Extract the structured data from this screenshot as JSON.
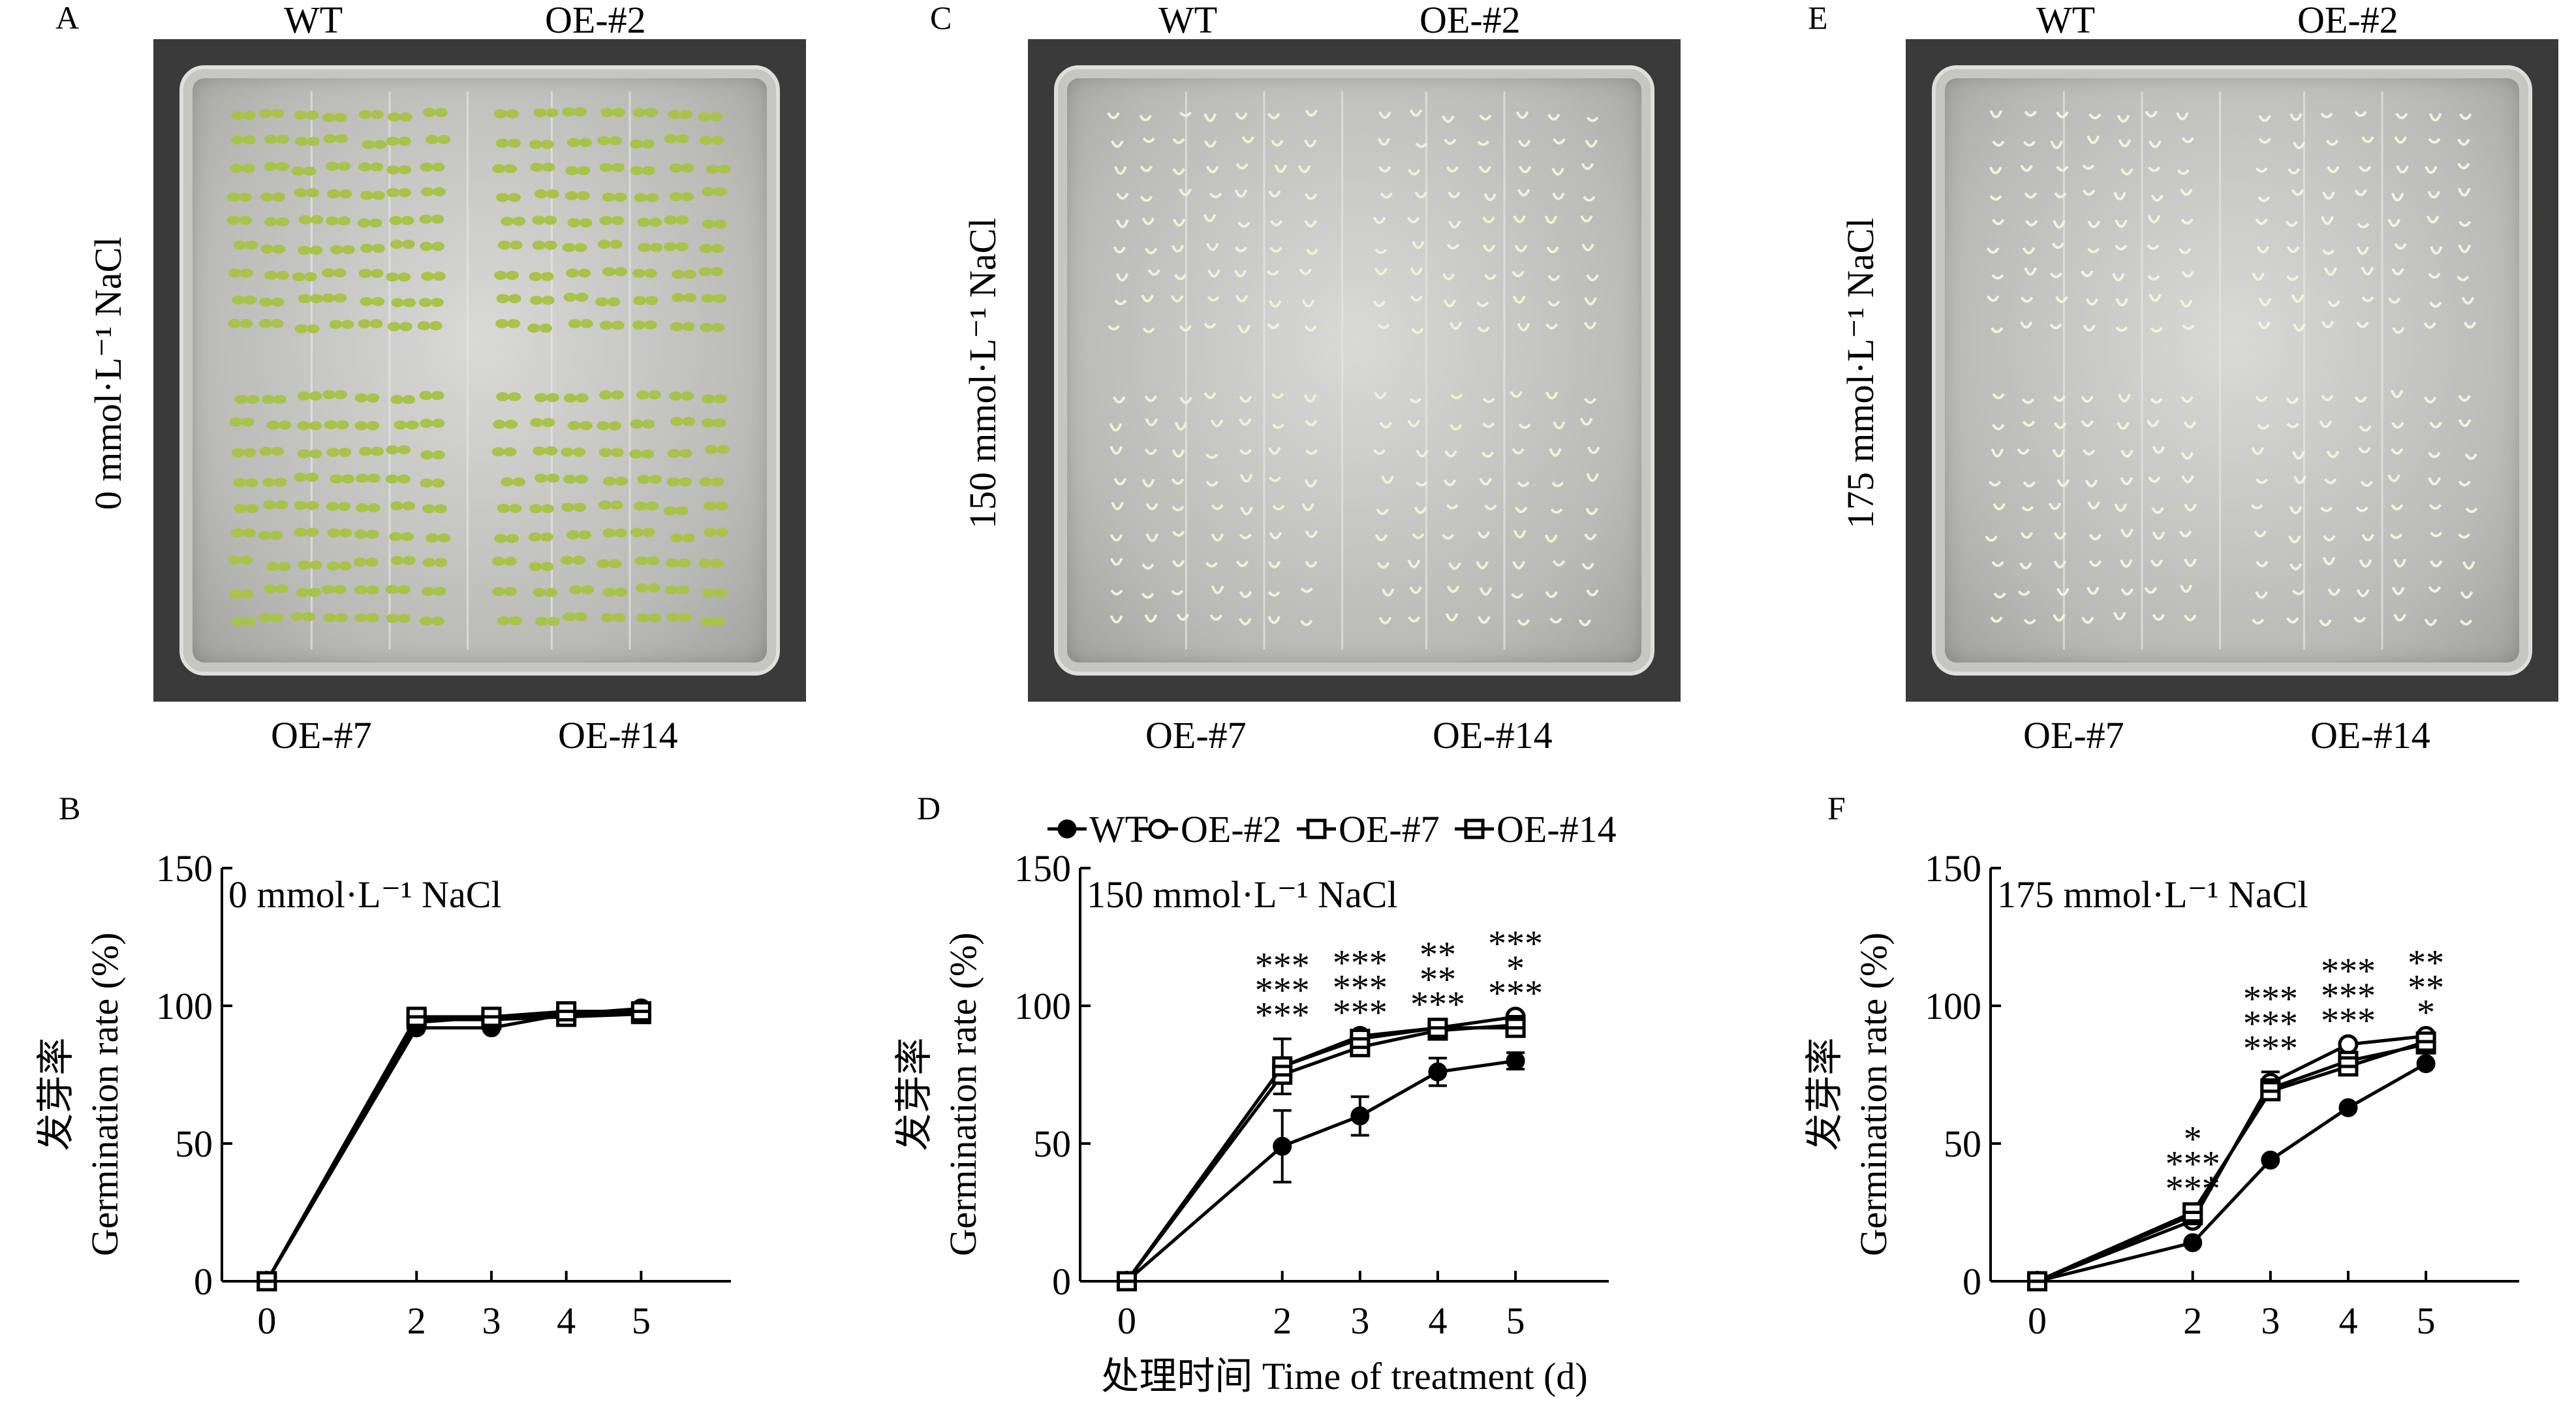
{
  "photos": [
    {
      "panel": "A",
      "condition_label": "0 mmol·L⁻¹ NaCl",
      "top_left": "WT",
      "top_right": "OE-#2",
      "bottom_left": "OE-#7",
      "bottom_right": "OE-#14",
      "seedling_color": "#a8c34a"
    },
    {
      "panel": "C",
      "condition_label": "150 mmol·L⁻¹ NaCl",
      "top_left": "WT",
      "top_right": "OE-#2",
      "bottom_left": "OE-#7",
      "bottom_right": "OE-#14",
      "seedling_color": "#f2f0d8"
    },
    {
      "panel": "E",
      "condition_label": "175 mmol·L⁻¹ NaCl",
      "top_left": "WT",
      "top_right": "OE-#2",
      "bottom_left": "OE-#7",
      "bottom_right": "OE-#14",
      "seedling_color": "#f4f2de"
    }
  ],
  "shared": {
    "ylabel_cn": "发芽率",
    "ylabel_en": "Germination rate (%)",
    "xlabel": "处理时间 Time of treatment (d)"
  },
  "chart_data": [
    {
      "panel": "B",
      "type": "line",
      "title": "0 mmol·L⁻¹ NaCl",
      "x": [
        0,
        2,
        3,
        4,
        5
      ],
      "ylim": [
        0,
        150
      ],
      "yticks": [
        0,
        50,
        100,
        150
      ],
      "series": [
        {
          "name": "WT",
          "marker": "filled-circle",
          "values": [
            0,
            92,
            92,
            97,
            98
          ]
        },
        {
          "name": "OE-#2",
          "marker": "open-circle",
          "values": [
            0,
            94,
            96,
            97,
            99
          ]
        },
        {
          "name": "OE-#7",
          "marker": "open-square",
          "values": [
            0,
            95,
            95,
            96,
            97
          ]
        },
        {
          "name": "OE-#14",
          "marker": "crossed-square",
          "values": [
            0,
            96,
            96,
            98,
            98
          ]
        }
      ],
      "errors": [],
      "significance": []
    },
    {
      "panel": "D",
      "type": "line",
      "title": "150 mmol·L⁻¹ NaCl",
      "x": [
        0,
        2,
        3,
        4,
        5
      ],
      "ylim": [
        0,
        150
      ],
      "yticks": [
        0,
        50,
        100,
        150
      ],
      "legend_position": "top",
      "series": [
        {
          "name": "WT",
          "marker": "filled-circle",
          "values": [
            0,
            49,
            60,
            76,
            80
          ]
        },
        {
          "name": "OE-#2",
          "marker": "open-circle",
          "values": [
            0,
            78,
            89,
            92,
            96
          ]
        },
        {
          "name": "OE-#7",
          "marker": "open-square",
          "values": [
            0,
            75,
            85,
            91,
            93
          ]
        },
        {
          "name": "OE-#14",
          "marker": "crossed-square",
          "values": [
            0,
            78,
            88,
            92,
            92
          ]
        }
      ],
      "errors": [
        {
          "x": 2,
          "y": 49,
          "err": 13
        },
        {
          "x": 3,
          "y": 60,
          "err": 7
        },
        {
          "x": 4,
          "y": 76,
          "err": 5
        },
        {
          "x": 5,
          "y": 80,
          "err": 3
        },
        {
          "x": 2,
          "y": 78,
          "err": 10
        }
      ],
      "significance": [
        {
          "x": 2,
          "lines": [
            "***",
            "***",
            "***"
          ]
        },
        {
          "x": 3,
          "lines": [
            "***",
            "***",
            "***"
          ]
        },
        {
          "x": 4,
          "lines": [
            "**",
            "**",
            "***"
          ]
        },
        {
          "x": 5,
          "lines": [
            "***",
            "*",
            "***"
          ]
        }
      ]
    },
    {
      "panel": "F",
      "type": "line",
      "title": "175 mmol·L⁻¹ NaCl",
      "x": [
        0,
        2,
        3,
        4,
        5
      ],
      "ylim": [
        0,
        150
      ],
      "yticks": [
        0,
        50,
        100,
        150
      ],
      "series": [
        {
          "name": "WT",
          "marker": "filled-circle",
          "values": [
            0,
            14,
            44,
            63,
            79
          ]
        },
        {
          "name": "OE-#2",
          "marker": "open-circle",
          "values": [
            0,
            22,
            72,
            86,
            89
          ]
        },
        {
          "name": "OE-#7",
          "marker": "open-square",
          "values": [
            0,
            24,
            70,
            80,
            86
          ]
        },
        {
          "name": "OE-#14",
          "marker": "crossed-square",
          "values": [
            0,
            25,
            69,
            78,
            87
          ]
        }
      ],
      "errors": [
        {
          "x": 3,
          "y": 72,
          "err": 4
        }
      ],
      "significance": [
        {
          "x": 2,
          "lines": [
            "*",
            "***",
            "***"
          ]
        },
        {
          "x": 3,
          "lines": [
            "***",
            "***",
            "***"
          ]
        },
        {
          "x": 4,
          "lines": [
            "***",
            "***",
            "***"
          ]
        },
        {
          "x": 5,
          "lines": [
            "**",
            "**",
            "*"
          ]
        }
      ]
    }
  ]
}
